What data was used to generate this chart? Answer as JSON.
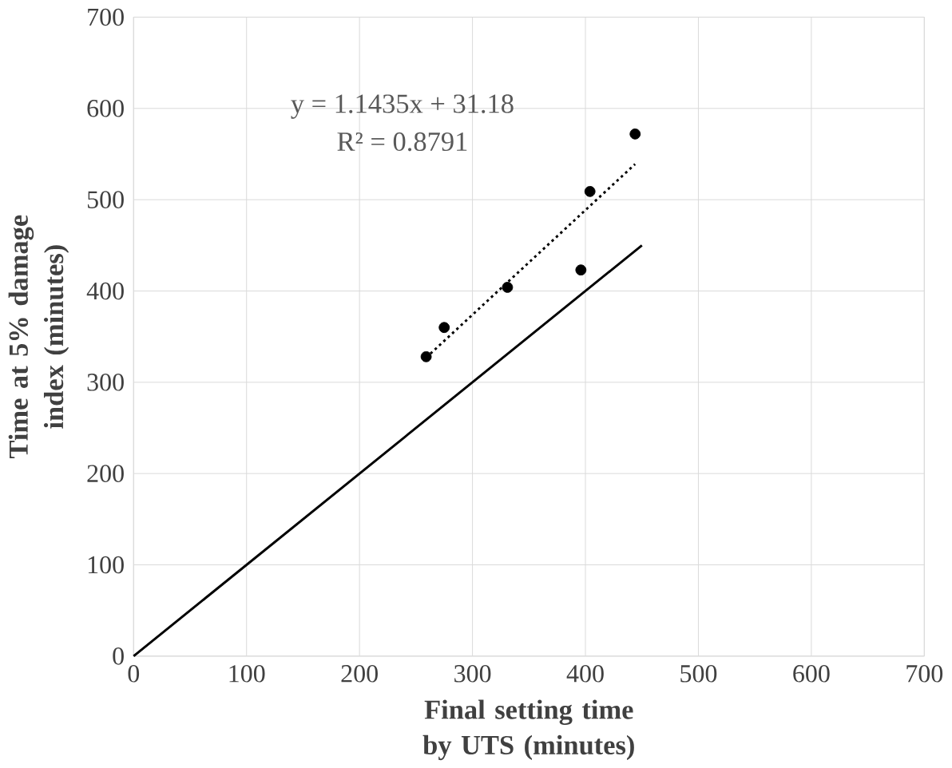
{
  "chart_data": {
    "type": "scatter",
    "xlabel": "Final setting time by UTS (minutes)",
    "ylabel": "Time at  5% damage index (minutes)",
    "xlim": [
      0,
      700
    ],
    "ylim": [
      0,
      700
    ],
    "xticks": [
      0,
      100,
      200,
      300,
      400,
      500,
      600,
      700
    ],
    "yticks": [
      0,
      100,
      200,
      300,
      400,
      500,
      600,
      700
    ],
    "grid": true,
    "marker": "circle",
    "series": [
      {
        "color": "#000000",
        "x": [
          259,
          275,
          331,
          396,
          404,
          444
        ],
        "values": [
          328,
          360,
          404,
          423,
          509,
          572
        ]
      },
      {
        "type": "line",
        "color": "#000000",
        "marker": "none",
        "line_style": "dotted",
        "x": [
          259,
          444
        ],
        "values": [
          327,
          539
        ]
      },
      {
        "type": "line",
        "color": "#000000",
        "marker": "none",
        "line_style": "solid",
        "x": [
          0,
          450
        ],
        "values": [
          0,
          450
        ]
      }
    ],
    "annotations": [
      "y = 1.1435x + 31.18",
      "R² = 0.8791"
    ]
  }
}
